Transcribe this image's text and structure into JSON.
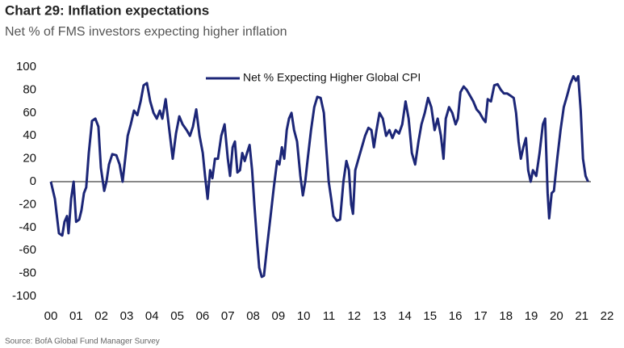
{
  "chart_data": {
    "type": "line",
    "title": "Chart 29: Inflation expectations",
    "subtitle": "Net % of FMS investors expecting higher inflation",
    "source": "Source: BofA Global Fund Manager Survey",
    "legend": "top center",
    "xlim": [
      0,
      22
    ],
    "xticks": [
      {
        "value": 0,
        "label": "00"
      },
      {
        "value": 1,
        "label": "01"
      },
      {
        "value": 2,
        "label": "02"
      },
      {
        "value": 3,
        "label": "03"
      },
      {
        "value": 4,
        "label": "04"
      },
      {
        "value": 5,
        "label": "05"
      },
      {
        "value": 6,
        "label": "06"
      },
      {
        "value": 7,
        "label": "07"
      },
      {
        "value": 8,
        "label": "08"
      },
      {
        "value": 9,
        "label": "09"
      },
      10,
      11,
      12,
      13,
      14,
      15,
      16,
      17,
      18,
      19,
      20,
      21,
      22
    ],
    "ylim": [
      -100,
      100
    ],
    "yticks": [
      -100,
      -80,
      -60,
      -40,
      -20,
      0,
      20,
      40,
      60,
      80,
      100
    ],
    "x": [
      0.0,
      0.16,
      0.32,
      0.45,
      0.54,
      0.64,
      0.7,
      0.8,
      0.9,
      1.0,
      1.12,
      1.21,
      1.31,
      1.4,
      1.5,
      1.63,
      1.76,
      1.88,
      1.98,
      2.11,
      2.2,
      2.3,
      2.43,
      2.59,
      2.72,
      2.84,
      2.94,
      3.04,
      3.16,
      3.29,
      3.42,
      3.55,
      3.67,
      3.8,
      3.93,
      4.06,
      4.19,
      4.31,
      4.41,
      4.54,
      4.66,
      4.82,
      4.95,
      5.08,
      5.21,
      5.37,
      5.5,
      5.62,
      5.75,
      5.88,
      6.01,
      6.1,
      6.2,
      6.3,
      6.39,
      6.49,
      6.61,
      6.74,
      6.87,
      7.0,
      7.09,
      7.19,
      7.28,
      7.38,
      7.48,
      7.57,
      7.67,
      7.76,
      7.86,
      7.96,
      8.05,
      8.15,
      8.24,
      8.34,
      8.43,
      8.56,
      8.69,
      8.82,
      8.95,
      9.04,
      9.14,
      9.23,
      9.33,
      9.42,
      9.52,
      9.62,
      9.74,
      9.87,
      9.97,
      10.06,
      10.16,
      10.29,
      10.42,
      10.54,
      10.67,
      10.8,
      10.89,
      10.99,
      11.09,
      11.18,
      11.31,
      11.44,
      11.57,
      11.69,
      11.79,
      11.88,
      11.95,
      12.04,
      12.17,
      12.3,
      12.43,
      12.56,
      12.68,
      12.78,
      12.88,
      13.0,
      13.13,
      13.26,
      13.39,
      13.51,
      13.64,
      13.77,
      13.9,
      14.03,
      14.15,
      14.28,
      14.41,
      14.54,
      14.66,
      14.79,
      14.92,
      15.05,
      15.18,
      15.3,
      15.43,
      15.53,
      15.62,
      15.75,
      15.88,
      16.01,
      16.1,
      16.2,
      16.33,
      16.45,
      16.58,
      16.71,
      16.84,
      16.96,
      17.09,
      17.19,
      17.28,
      17.41,
      17.54,
      17.67,
      17.8,
      17.92,
      18.05,
      18.18,
      18.31,
      18.4,
      18.5,
      18.59,
      18.69,
      18.79,
      18.88,
      18.98,
      19.07,
      19.2,
      19.33,
      19.46,
      19.55,
      19.65,
      19.71,
      19.81,
      19.9,
      20.03,
      20.16,
      20.29,
      20.42,
      20.54,
      20.67,
      20.77,
      20.86,
      20.96,
      21.05,
      21.15,
      21.25
    ],
    "series": [
      {
        "name": "Net % Expecting Higher Global CPI",
        "color": "#1c2677",
        "values": [
          0,
          -15,
          -45,
          -47,
          -35,
          -30,
          -45,
          -15,
          0,
          -35,
          -33,
          -25,
          -10,
          -5,
          25,
          53,
          55,
          48,
          12,
          -8,
          0,
          15,
          24,
          23,
          15,
          0,
          20,
          40,
          50,
          62,
          58,
          70,
          84,
          86,
          70,
          60,
          55,
          62,
          55,
          72,
          50,
          20,
          42,
          57,
          50,
          45,
          40,
          48,
          63,
          40,
          25,
          5,
          -15,
          10,
          3,
          20,
          20,
          40,
          50,
          20,
          5,
          30,
          35,
          8,
          10,
          25,
          18,
          25,
          32,
          10,
          -20,
          -50,
          -75,
          -83,
          -82,
          -55,
          -30,
          -5,
          18,
          15,
          30,
          20,
          45,
          55,
          60,
          45,
          35,
          5,
          -12,
          0,
          20,
          45,
          65,
          74,
          73,
          60,
          30,
          0,
          -15,
          -30,
          -34,
          -33,
          0,
          18,
          10,
          -20,
          -28,
          10,
          20,
          30,
          40,
          47,
          45,
          30,
          45,
          60,
          55,
          40,
          45,
          38,
          45,
          42,
          50,
          70,
          55,
          25,
          15,
          35,
          50,
          60,
          73,
          65,
          45,
          55,
          40,
          20,
          55,
          65,
          60,
          50,
          55,
          78,
          83,
          80,
          75,
          70,
          63,
          60,
          55,
          52,
          72,
          70,
          84,
          85,
          80,
          77,
          77,
          75,
          73,
          60,
          35,
          20,
          30,
          38,
          10,
          0,
          10,
          5,
          25,
          50,
          55,
          -10,
          -32,
          -10,
          -8,
          20,
          45,
          65,
          75,
          85,
          92,
          88,
          92,
          62,
          20,
          5,
          0
        ]
      }
    ]
  }
}
